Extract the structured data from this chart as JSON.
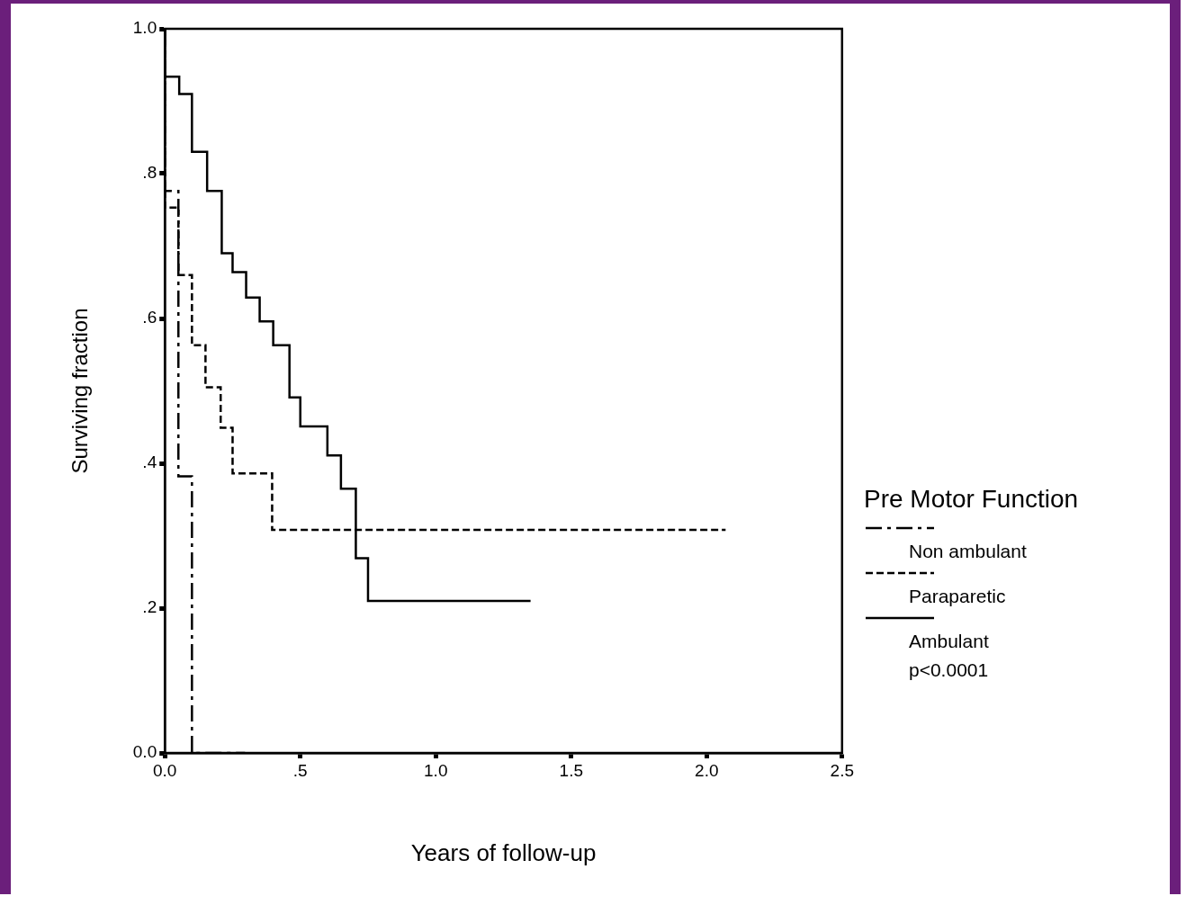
{
  "chart_data": {
    "type": "step",
    "xlabel": "Years of follow-up",
    "ylabel": "Surviving fraction",
    "legend_title": "Pre Motor Function",
    "legend": "right",
    "grid": false,
    "xlim": [
      0,
      2.5
    ],
    "xticks": [
      {
        "value": 0,
        "label": "0.0"
      },
      {
        "value": 0.5,
        "label": ".5"
      },
      {
        "value": 1,
        "label": "1.0"
      },
      {
        "value": 1.5,
        "label": "1.5"
      },
      {
        "value": 2,
        "label": "2.0"
      },
      {
        "value": 2.5,
        "label": "2.5"
      }
    ],
    "ylim": [
      0,
      1
    ],
    "yticks": [
      {
        "value": 0,
        "label": "0.0"
      },
      {
        "value": 0.2,
        "label": ".2"
      },
      {
        "value": 0.4,
        "label": ".4"
      },
      {
        "value": 0.6,
        "label": ".6"
      },
      {
        "value": 0.8,
        "label": ".8"
      },
      {
        "value": 1,
        "label": "1.0"
      }
    ],
    "series": [
      {
        "name": "Non ambulant",
        "color": "#000000",
        "line_style": "dashdot",
        "x": [
          0,
          0.05,
          0.1,
          0.296
        ],
        "values": [
          1,
          0.776,
          0.382,
          0
        ]
      },
      {
        "name": "Paraparetic",
        "color": "#000000",
        "line_style": "dashed",
        "x": [
          0,
          0.05,
          0.1,
          0.15,
          0.206,
          0.25,
          0.396,
          0.455,
          2.07
        ],
        "values": [
          1,
          0.753,
          0.66,
          0.563,
          0.505,
          0.449,
          0.386,
          0.308,
          0.308
        ]
      },
      {
        "name": "Ambulant",
        "color": "#000000",
        "line_style": "solid",
        "x": [
          0,
          0.053,
          0.1,
          0.156,
          0.21,
          0.25,
          0.3,
          0.35,
          0.4,
          0.46,
          0.5,
          0.6,
          0.65,
          0.705,
          0.75,
          0.89,
          1.35
        ],
        "values": [
          1,
          0.934,
          0.91,
          0.83,
          0.776,
          0.69,
          0.664,
          0.629,
          0.596,
          0.563,
          0.491,
          0.451,
          0.411,
          0.365,
          0.269,
          0.21,
          0.21
        ]
      }
    ],
    "annotations": [
      "p<0.0001"
    ]
  }
}
